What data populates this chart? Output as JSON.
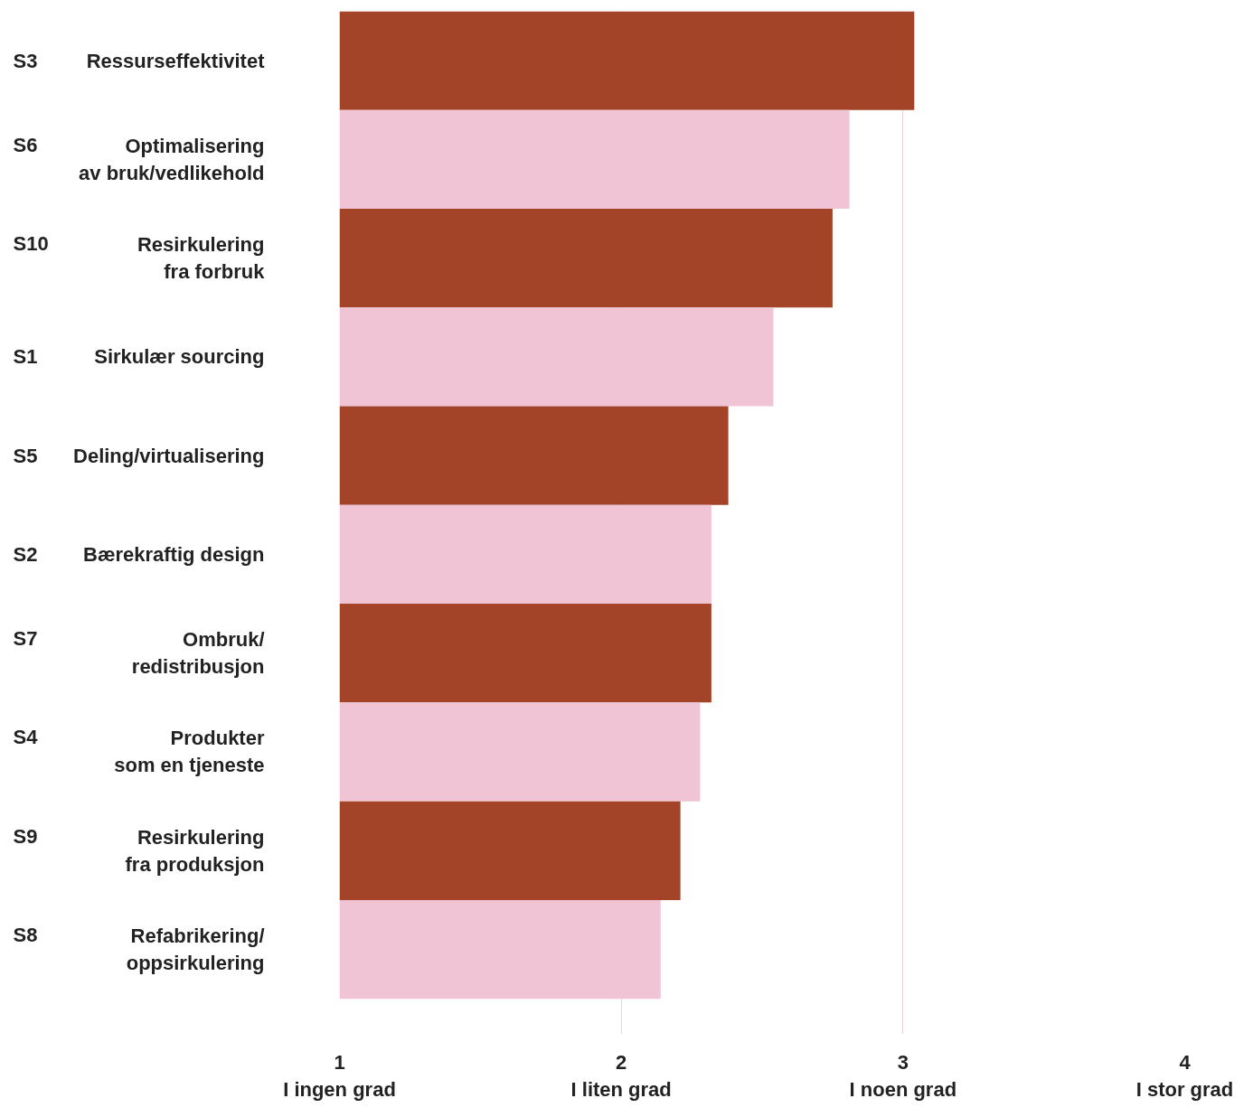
{
  "chart_data": {
    "type": "bar",
    "orientation": "horizontal",
    "categories": [
      "S3 Ressurseffektivitet",
      "S6 Optimalisering\nav bruk/vedlikehold",
      "S10 Resirkulering\nfra forbruk",
      "S1 Sirkulær sourcing",
      "S5 Deling/virtualisering",
      "S2 Bærekraftig design",
      "S7 Ombruk/\nredistribusjon",
      "S4 Produkter\nsom en tjeneste",
      "S9 Resirkulering\nfra produksjon",
      "S8 Refabrikering/\noppsirkulering"
    ],
    "values": [
      3.04,
      2.81,
      2.75,
      2.54,
      2.38,
      2.32,
      2.32,
      2.28,
      2.21,
      2.14
    ],
    "colors": [
      "#a34428",
      "#f0c4d5",
      "#a34428",
      "#f0c4d5",
      "#a34428",
      "#f0c4d5",
      "#a34428",
      "#f0c4d5",
      "#a34428",
      "#f0c4d5"
    ],
    "xlim": [
      1,
      4
    ],
    "xticks": [
      {
        "value": 1,
        "label": "1\nI ingen grad"
      },
      {
        "value": 2,
        "label": "2\nI liten grad"
      },
      {
        "value": 3,
        "label": "3\nI noen grad"
      },
      {
        "value": 4,
        "label": "4\nI stor grad"
      }
    ],
    "grid": "x"
  }
}
